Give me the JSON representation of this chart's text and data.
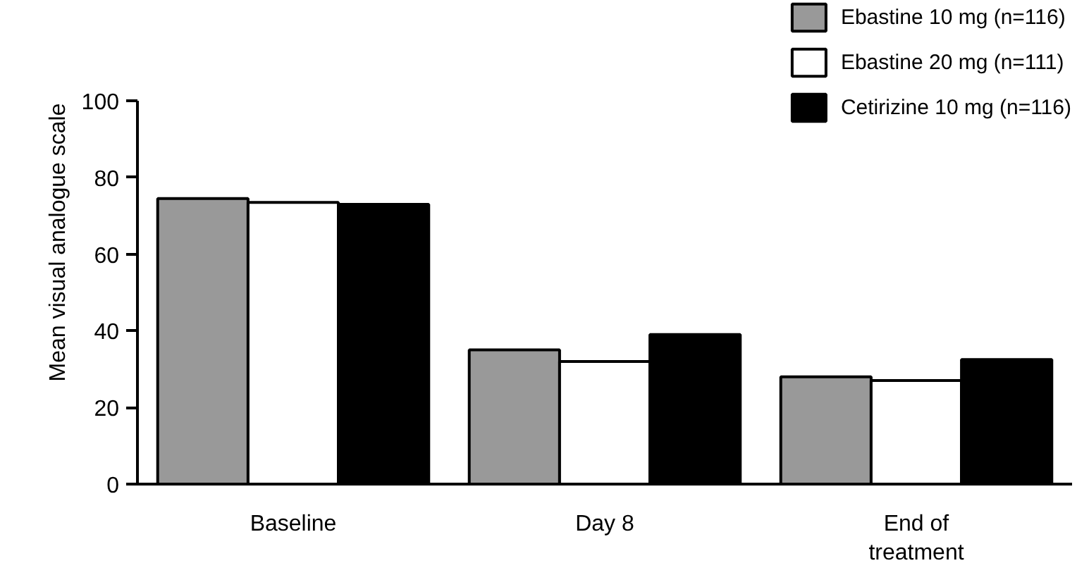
{
  "chart_data": {
    "type": "bar",
    "ylabel": "Mean visual analogue scale",
    "categories": [
      "Baseline",
      "Day 8",
      "End of\ntreatment"
    ],
    "series": [
      {
        "name": "Ebastine 10 mg (n=116)",
        "color": "#999999",
        "values": [
          74.5,
          35,
          28
        ]
      },
      {
        "name": "Ebastine 20 mg (n=111)",
        "color": "#ffffff",
        "values": [
          73.5,
          32,
          27
        ]
      },
      {
        "name": "Cetirizine 10 mg (n=116)",
        "color": "#000000",
        "values": [
          73,
          39,
          32.5
        ]
      }
    ],
    "ylim": [
      0,
      100
    ],
    "yticks": [
      0,
      20,
      40,
      60,
      80,
      100
    ],
    "grid": false,
    "legend": "top right"
  }
}
